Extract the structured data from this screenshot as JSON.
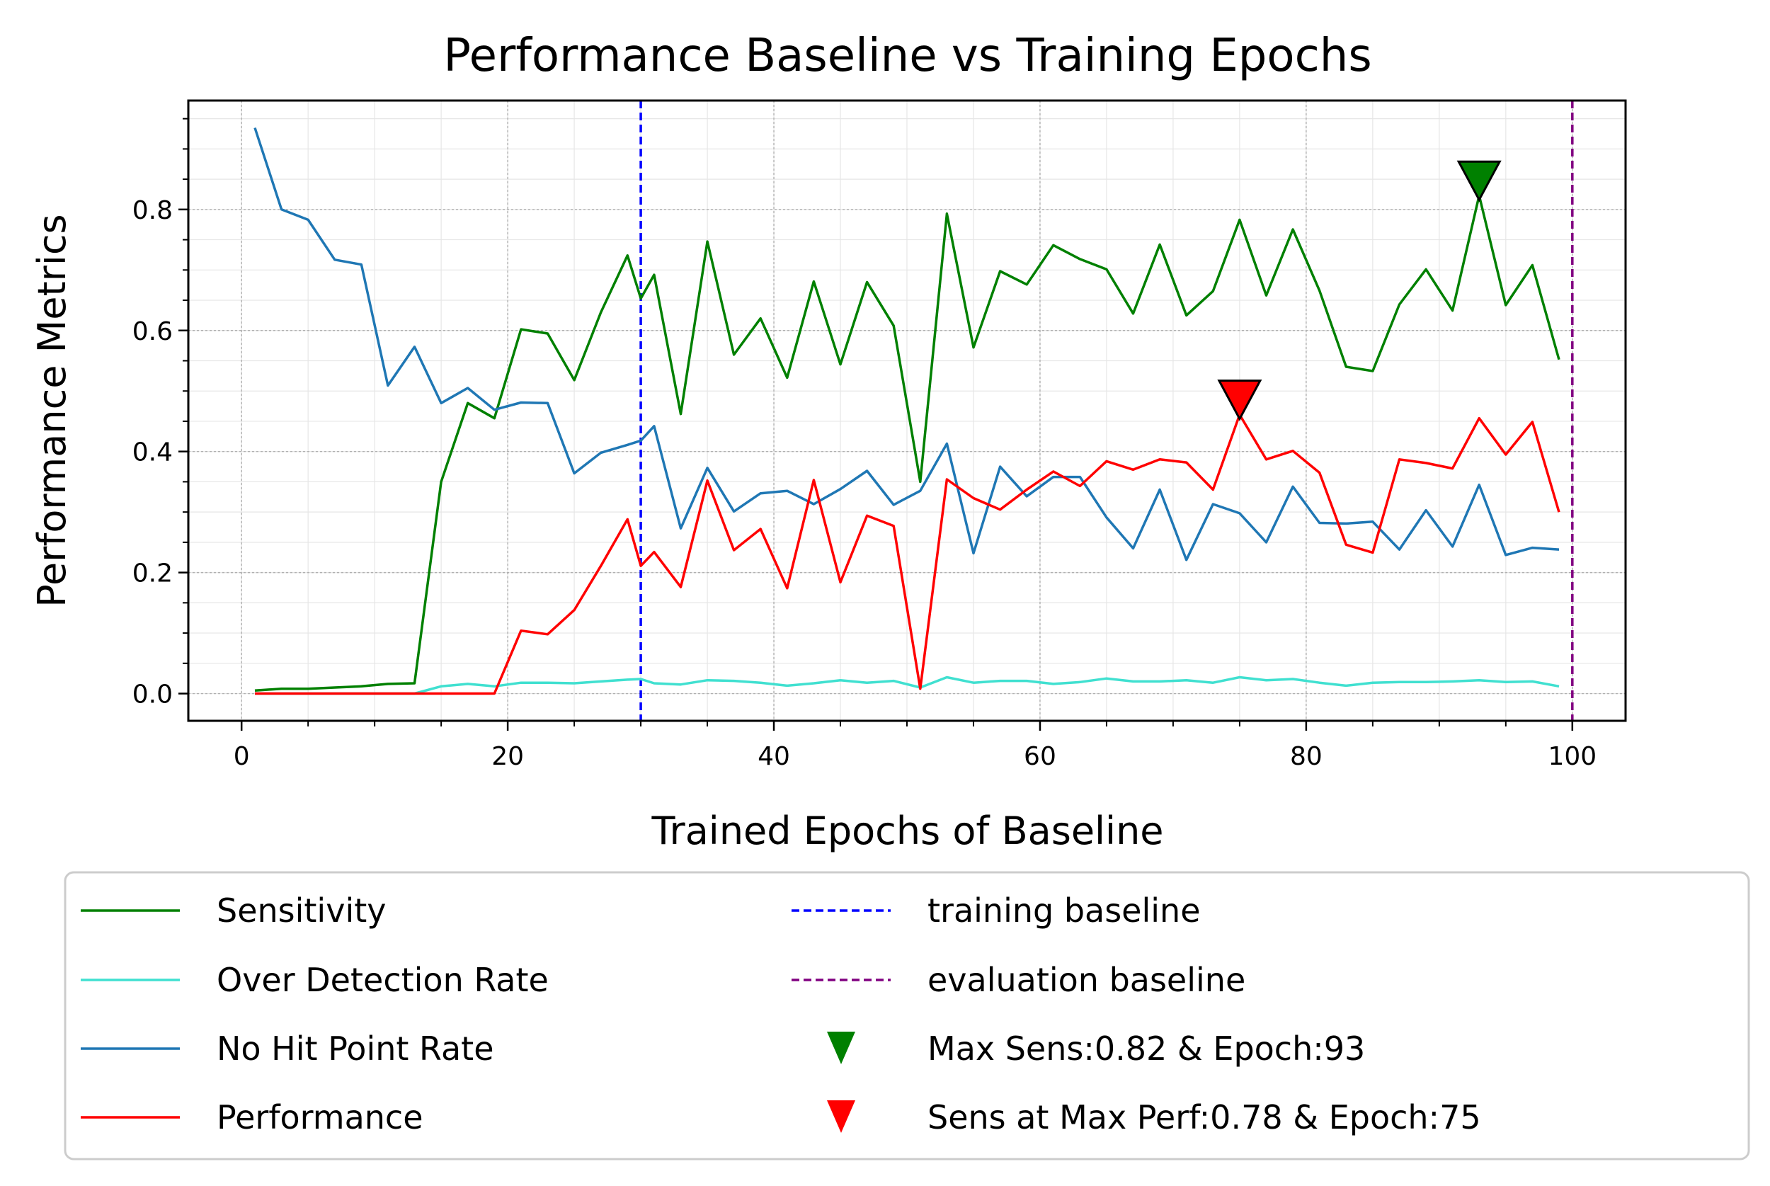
{
  "chart_data": {
    "type": "line",
    "title": "Performance Baseline vs Training Epochs",
    "xlabel": "Trained Epochs of Baseline",
    "ylabel": "Performance Metrics",
    "xlim": [
      -4,
      104
    ],
    "ylim": [
      -0.045,
      0.98
    ],
    "xticks": [
      0,
      20,
      40,
      60,
      80,
      100
    ],
    "yticks": [
      0.0,
      0.2,
      0.4,
      0.6,
      0.8
    ],
    "grid": true,
    "legend_placement": "below",
    "x": [
      1,
      3,
      5,
      7,
      9,
      11,
      13,
      15,
      17,
      19,
      21,
      23,
      25,
      27,
      29,
      30,
      31,
      33,
      35,
      37,
      39,
      41,
      43,
      45,
      47,
      49,
      51,
      53,
      55,
      57,
      59,
      61,
      63,
      65,
      67,
      69,
      71,
      73,
      75,
      77,
      79,
      81,
      83,
      85,
      87,
      89,
      91,
      93,
      95,
      97,
      99
    ],
    "series": [
      {
        "name": "Sensitivity",
        "color": "#008000",
        "values": [
          0.005,
          0.008,
          0.008,
          0.01,
          0.012,
          0.016,
          0.017,
          0.35,
          0.48,
          0.455,
          0.602,
          0.595,
          0.518,
          0.63,
          0.724,
          0.653,
          0.692,
          0.462,
          0.747,
          0.56,
          0.62,
          0.522,
          0.681,
          0.544,
          0.68,
          0.608,
          0.35,
          0.793,
          0.572,
          0.698,
          0.676,
          0.741,
          0.718,
          0.701,
          0.628,
          0.742,
          0.625,
          0.665,
          0.783,
          0.658,
          0.767,
          0.666,
          0.54,
          0.533,
          0.643,
          0.701,
          0.633,
          0.823,
          0.642,
          0.708,
          0.552
        ]
      },
      {
        "name": "Over Detection Rate",
        "color": "#40e0d0",
        "values": [
          0.0,
          0.0,
          0.0,
          0.0,
          0.0,
          0.0,
          0.0,
          0.012,
          0.016,
          0.012,
          0.018,
          0.018,
          0.017,
          0.02,
          0.023,
          0.024,
          0.017,
          0.015,
          0.022,
          0.021,
          0.018,
          0.013,
          0.017,
          0.022,
          0.018,
          0.021,
          0.01,
          0.027,
          0.018,
          0.021,
          0.021,
          0.016,
          0.019,
          0.025,
          0.02,
          0.02,
          0.022,
          0.018,
          0.027,
          0.022,
          0.024,
          0.018,
          0.013,
          0.018,
          0.019,
          0.019,
          0.02,
          0.022,
          0.019,
          0.02,
          0.012
        ]
      },
      {
        "name": "No Hit Point Rate",
        "color": "#1f77b4",
        "values": [
          0.935,
          0.8,
          0.783,
          0.717,
          0.709,
          0.509,
          0.573,
          0.48,
          0.505,
          0.469,
          0.481,
          0.48,
          0.364,
          0.398,
          0.411,
          0.418,
          0.442,
          0.273,
          0.373,
          0.301,
          0.331,
          0.335,
          0.313,
          0.338,
          0.368,
          0.312,
          0.335,
          0.413,
          0.232,
          0.375,
          0.326,
          0.358,
          0.358,
          0.291,
          0.24,
          0.337,
          0.221,
          0.313,
          0.298,
          0.25,
          0.342,
          0.282,
          0.281,
          0.284,
          0.238,
          0.303,
          0.243,
          0.345,
          0.229,
          0.241,
          0.238
        ]
      },
      {
        "name": "Performance",
        "color": "#ff0000",
        "values": [
          0.0,
          0.0,
          0.0,
          0.0,
          0.0,
          0.0,
          0.0,
          0.0,
          0.0,
          0.0,
          0.104,
          0.098,
          0.138,
          0.211,
          0.288,
          0.211,
          0.234,
          0.176,
          0.352,
          0.237,
          0.272,
          0.174,
          0.353,
          0.184,
          0.294,
          0.277,
          0.008,
          0.354,
          0.323,
          0.304,
          0.337,
          0.367,
          0.343,
          0.384,
          0.37,
          0.387,
          0.382,
          0.337,
          0.461,
          0.387,
          0.401,
          0.365,
          0.246,
          0.233,
          0.387,
          0.381,
          0.372,
          0.455,
          0.395,
          0.449,
          0.3
        ]
      }
    ],
    "vlines": [
      {
        "name": "training baseline",
        "x": 30,
        "color": "#0000ff"
      },
      {
        "name": "evaluation baseline",
        "x": 100,
        "color": "#800080"
      }
    ],
    "markers": [
      {
        "name": "Max Sens:0.82 & Epoch:93",
        "x": 93,
        "y": 0.823,
        "color": "#008000"
      },
      {
        "name": "Sens at Max Perf:0.78 & Epoch:75",
        "x": 75,
        "y": 0.461,
        "color": "#ff0000"
      }
    ]
  }
}
